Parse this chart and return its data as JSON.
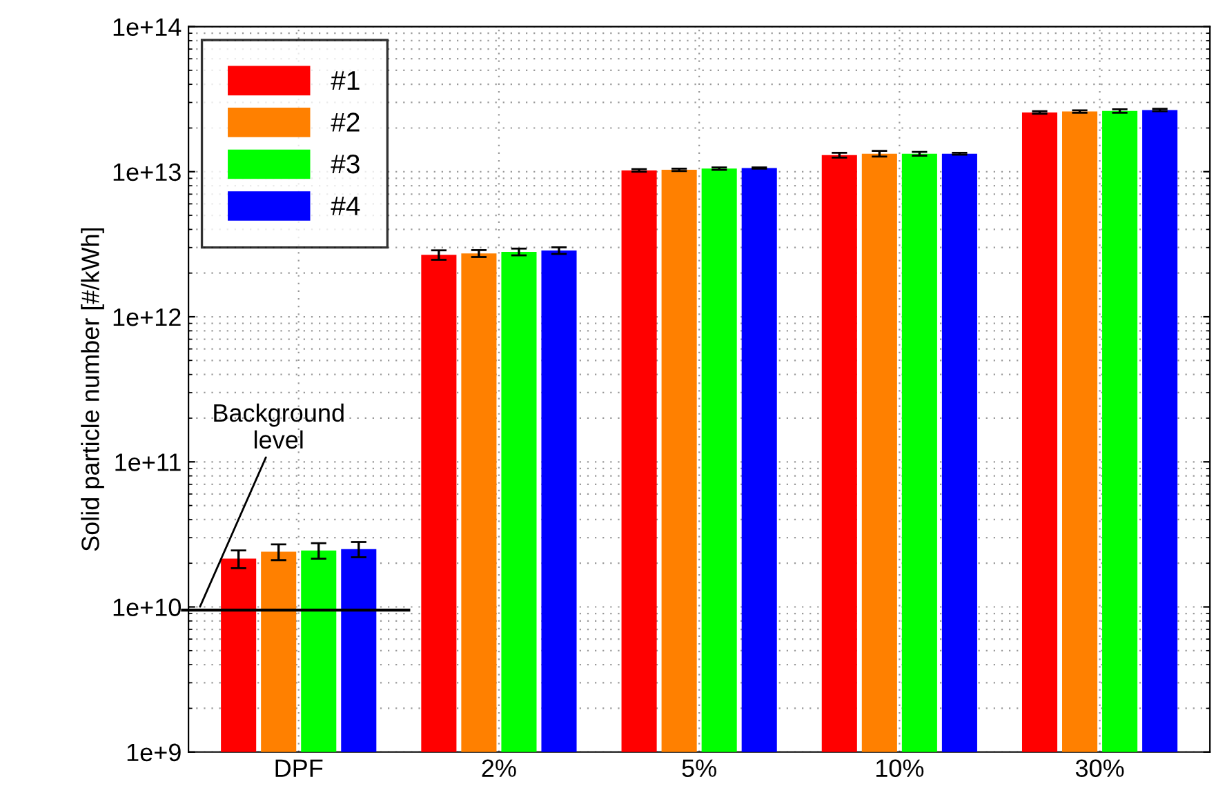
{
  "chart_data": {
    "type": "bar",
    "ylabel": "Solid particle number [#/kWh]",
    "log": "y",
    "categories": [
      "DPF",
      "2%",
      "5%",
      "10%",
      "30%"
    ],
    "series": [
      {
        "name": "#1",
        "color": "#ff0000",
        "values": [
          21500000000.0,
          2670000000000.0,
          10200000000000.0,
          13000000000000.0,
          25600000000000.0
        ],
        "errors": [
          3000000000.0,
          200000000000.0,
          200000000000.0,
          500000000000.0,
          500000000000.0
        ]
      },
      {
        "name": "#2",
        "color": "#ff8000",
        "values": [
          24000000000.0,
          2730000000000.0,
          10300000000000.0,
          13300000000000.0,
          26000000000000.0
        ],
        "errors": [
          3000000000.0,
          150000000000.0,
          200000000000.0,
          600000000000.0,
          500000000000.0
        ]
      },
      {
        "name": "#3",
        "color": "#00ff00",
        "values": [
          24500000000.0,
          2800000000000.0,
          10500000000000.0,
          13300000000000.0,
          26200000000000.0
        ],
        "errors": [
          3000000000.0,
          150000000000.0,
          200000000000.0,
          400000000000.0,
          700000000000.0
        ]
      },
      {
        "name": "#4",
        "color": "#0000ff",
        "values": [
          25000000000.0,
          2860000000000.0,
          10600000000000.0,
          13300000000000.0,
          26600000000000.0
        ],
        "errors": [
          3000000000.0,
          150000000000.0,
          100000000000.0,
          200000000000.0,
          500000000000.0
        ]
      }
    ],
    "ylim": [
      1000000000.0,
      100000000000000.0
    ],
    "yticks": [
      {
        "value": 1000000000.0,
        "label": "1e+9"
      },
      {
        "value": 10000000000.0,
        "label": "1e+10"
      },
      {
        "value": 100000000000.0,
        "label": "1e+11"
      },
      {
        "value": 1000000000000.0,
        "label": "1e+12"
      },
      {
        "value": 10000000000000.0,
        "label": "1e+13"
      },
      {
        "value": 100000000000000.0,
        "label": "1e+14"
      }
    ],
    "ref_lines": [
      {
        "axis": "y",
        "value": 9500000000.0,
        "label": "Background\nlevel",
        "color": "#000000",
        "line_style": "solid"
      }
    ],
    "grid": true,
    "legend": "top left"
  }
}
